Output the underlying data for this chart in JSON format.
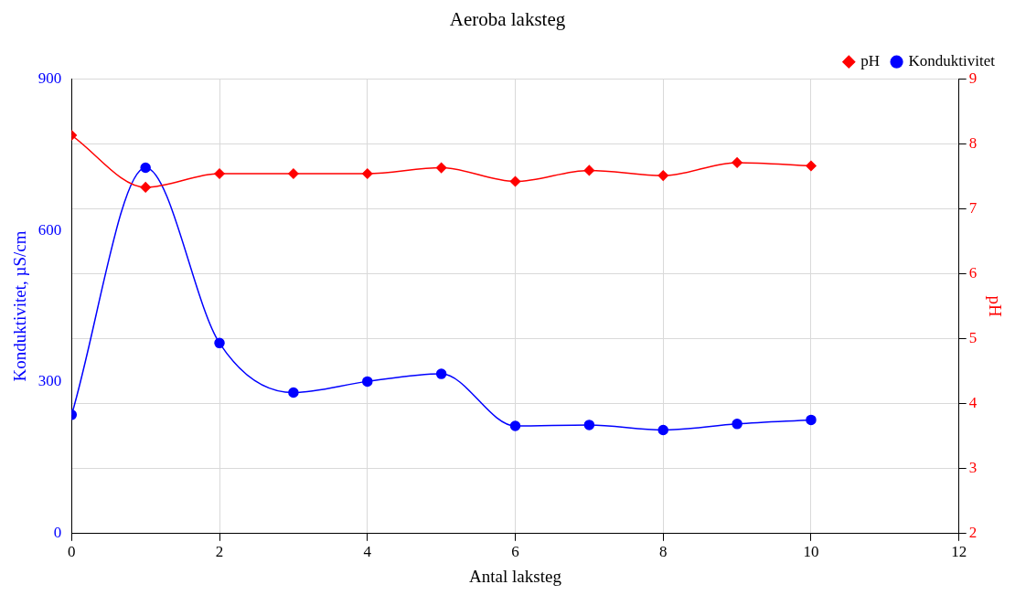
{
  "chart_data": {
    "type": "line",
    "title": "Aeroba laksteg",
    "xlabel": "Antal laksteg",
    "ylabel": "Konduktivitet, µS/cm",
    "y2label": "pH",
    "x": [
      0,
      1,
      2,
      3,
      4,
      5,
      6,
      7,
      8,
      9,
      10
    ],
    "xlim": [
      0,
      12
    ],
    "xticks": [
      0,
      2,
      4,
      6,
      8,
      10,
      12
    ],
    "ylim": [
      0,
      900
    ],
    "yticks": [
      0,
      300,
      600,
      900
    ],
    "y2lim": [
      2,
      9
    ],
    "y2ticks": [
      2,
      3,
      4,
      5,
      6,
      7,
      8,
      9
    ],
    "grid": true,
    "legend": "top right",
    "series": [
      {
        "name": "pH",
        "color": "#ff0000",
        "axis": "y2",
        "marker": "diamond",
        "values": [
          8.13,
          7.33,
          7.54,
          7.54,
          7.54,
          7.63,
          7.42,
          7.59,
          7.51,
          7.71,
          7.66
        ]
      },
      {
        "name": "Konduktivitet",
        "color": "#0000ff",
        "axis": "y",
        "marker": "circle",
        "values": [
          235,
          724,
          377,
          279,
          301,
          316,
          213,
          215,
          205,
          217,
          225
        ]
      }
    ]
  }
}
